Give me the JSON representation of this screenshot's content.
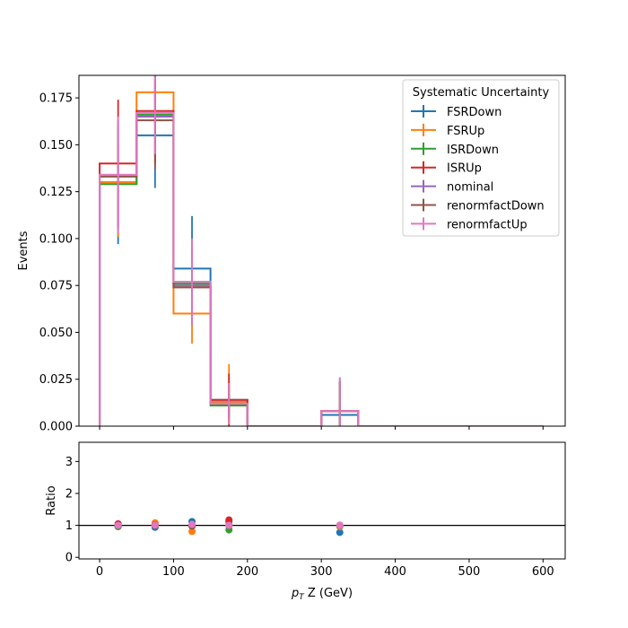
{
  "chart_data": [
    {
      "type": "line",
      "drawstyle": "steps",
      "xlim": [
        -28,
        630
      ],
      "ylim": [
        0,
        0.187
      ],
      "ylabel": "Events",
      "xlabel": "",
      "grid": false,
      "y_ticks": [
        "0.000",
        "0.025",
        "0.050",
        "0.075",
        "0.100",
        "0.125",
        "0.150",
        "0.175"
      ],
      "y_tick_values": [
        0,
        0.025,
        0.05,
        0.075,
        0.1,
        0.125,
        0.15,
        0.175
      ],
      "bin_edges": [
        0,
        50,
        100,
        150,
        200,
        300,
        350,
        600
      ],
      "bin_centers": [
        25,
        75,
        125,
        175,
        250,
        325,
        475
      ],
      "legend": {
        "title": "Systematic Uncertainty",
        "placement": "top-right"
      },
      "series": [
        {
          "name": "FSRDown",
          "color": "#1f77b4",
          "values": [
            0.13,
            0.155,
            0.084,
            0.014,
            0.0,
            0.006,
            0.0
          ],
          "err": [
            0.033,
            0.028,
            0.028,
            0.01,
            0.0,
            0.02,
            0.0
          ]
        },
        {
          "name": "FSRUp",
          "color": "#ff7f0e",
          "values": [
            0.13,
            0.178,
            0.06,
            0.013,
            0.0,
            0.008,
            0.0
          ],
          "err": [
            0.029,
            0.03,
            0.016,
            0.02,
            0.0,
            0.016,
            0.0
          ]
        },
        {
          "name": "ISRDown",
          "color": "#2ca02c",
          "values": [
            0.129,
            0.166,
            0.076,
            0.011,
            0.0,
            0.008,
            0.0
          ],
          "err": [
            0.022,
            0.025,
            0.022,
            0.006,
            0.0,
            0.016,
            0.0
          ]
        },
        {
          "name": "ISRUp",
          "color": "#d62728",
          "values": [
            0.14,
            0.168,
            0.074,
            0.014,
            0.0,
            0.008,
            0.0
          ],
          "err": [
            0.034,
            0.028,
            0.018,
            0.014,
            0.0,
            0.016,
            0.0
          ]
        },
        {
          "name": "nominal",
          "color": "#9467bd",
          "values": [
            0.134,
            0.165,
            0.075,
            0.012,
            0.0,
            0.008,
            0.0
          ],
          "err": [
            0.028,
            0.025,
            0.02,
            0.01,
            0.0,
            0.016,
            0.0
          ]
        },
        {
          "name": "renormfactDown",
          "color": "#8c564b",
          "values": [
            0.133,
            0.163,
            0.074,
            0.012,
            0.0,
            0.008,
            0.0
          ],
          "err": [
            0.028,
            0.026,
            0.02,
            0.01,
            0.0,
            0.016,
            0.0
          ]
        },
        {
          "name": "renormfactUp",
          "color": "#e377c2",
          "values": [
            0.134,
            0.167,
            0.077,
            0.012,
            0.0,
            0.008,
            0.0
          ],
          "err": [
            0.031,
            0.022,
            0.023,
            0.011,
            0.0,
            0.018,
            0.0
          ]
        }
      ]
    },
    {
      "type": "scatter",
      "xlim": [
        -28,
        630
      ],
      "ylim": [
        -0.05,
        3.6
      ],
      "ylabel": "Ratio",
      "xlabel": "p_T Z (GeV)",
      "x_ticks": [
        "0",
        "100",
        "200",
        "300",
        "400",
        "500",
        "600"
      ],
      "x_tick_values": [
        0,
        100,
        200,
        300,
        400,
        500,
        600
      ],
      "y_ticks": [
        "0",
        "1",
        "2",
        "3"
      ],
      "y_tick_values": [
        0,
        1,
        2,
        3
      ],
      "reference_line": 1,
      "x": [
        25,
        75,
        125,
        175,
        325
      ],
      "series": [
        {
          "name": "FSRDown",
          "color": "#1f77b4",
          "values": [
            0.97,
            0.94,
            1.12,
            1.12,
            0.78
          ]
        },
        {
          "name": "FSRUp",
          "color": "#ff7f0e",
          "values": [
            0.97,
            1.08,
            0.81,
            1.02,
            0.96
          ]
        },
        {
          "name": "ISRDown",
          "color": "#2ca02c",
          "values": [
            0.96,
            1.0,
            1.01,
            0.86,
            0.99
          ]
        },
        {
          "name": "ISRUp",
          "color": "#d62728",
          "values": [
            1.05,
            1.02,
            0.98,
            1.17,
            1.0
          ]
        },
        {
          "name": "nominal",
          "color": "#9467bd",
          "values": [
            1.0,
            1.0,
            1.0,
            1.0,
            1.0
          ]
        },
        {
          "name": "renormfactDown",
          "color": "#8c564b",
          "values": [
            0.99,
            0.99,
            0.98,
            0.99,
            1.0
          ]
        },
        {
          "name": "renormfactUp",
          "color": "#e377c2",
          "values": [
            1.0,
            1.01,
            1.03,
            1.0,
            1.0
          ]
        }
      ]
    }
  ]
}
